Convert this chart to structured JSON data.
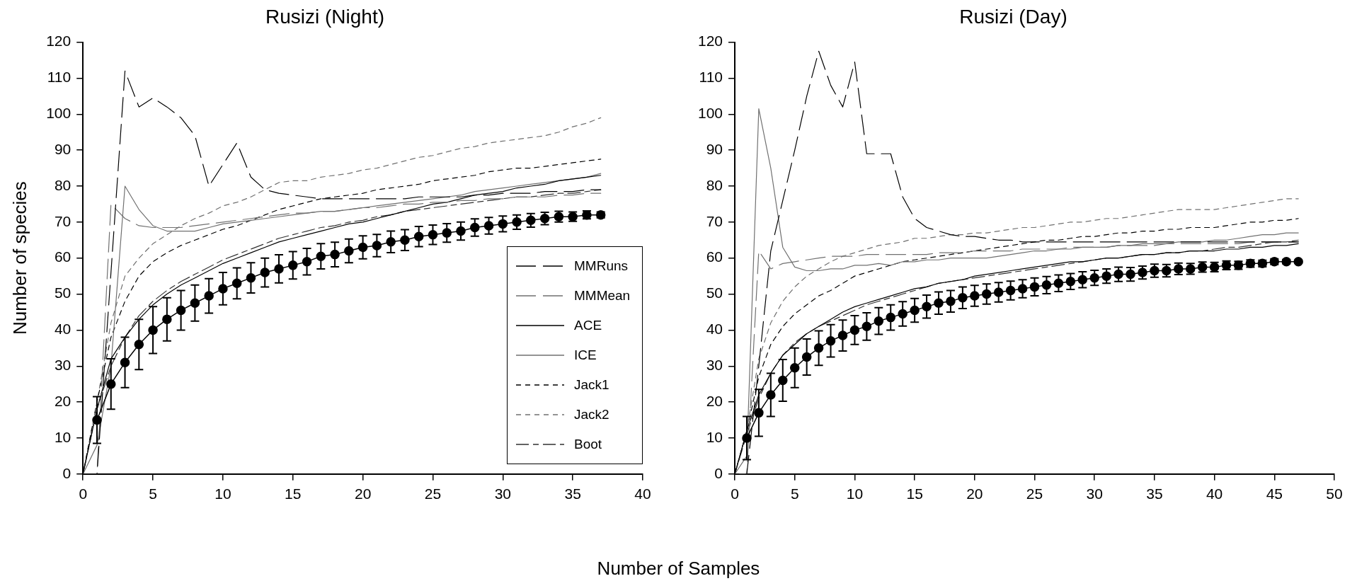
{
  "chart_data": [
    {
      "type": "line",
      "title": "Rusizi (Night)",
      "xlabel": "Number of Samples",
      "ylabel": "Number of species",
      "xlim": [
        0,
        40
      ],
      "xticks": [
        0,
        5,
        10,
        15,
        20,
        25,
        30,
        35,
        40
      ],
      "ylim": [
        0,
        120
      ],
      "yticks": [
        0,
        10,
        20,
        30,
        40,
        50,
        60,
        70,
        80,
        90,
        100,
        110,
        120
      ],
      "grid": false,
      "legend": "bottom right",
      "marker": "none",
      "x": [
        0,
        1,
        2,
        3,
        4,
        5,
        6,
        7,
        8,
        9,
        10,
        11,
        12,
        13,
        14,
        15,
        16,
        17,
        18,
        19,
        20,
        21,
        22,
        23,
        24,
        25,
        26,
        27,
        28,
        29,
        30,
        31,
        32,
        33,
        34,
        35,
        36,
        37
      ],
      "series": [
        {
          "name": "MMRuns",
          "color": "#000000",
          "line_style": "dashed",
          "values": [
            0,
            0,
            56,
            112,
            102,
            104.5,
            102,
            99,
            94,
            80,
            86,
            92,
            82.5,
            79,
            78,
            77.5,
            77,
            76.5,
            76.5,
            76.5,
            76.5,
            76.5,
            76.5,
            76.5,
            77,
            77,
            77,
            77,
            77.5,
            77.5,
            78,
            78,
            78,
            78.5,
            78.5,
            78.5,
            79,
            79
          ]
        },
        {
          "name": "MMMean",
          "color": "#707070",
          "line_style": "dashed",
          "values": [
            0,
            0,
            75,
            71,
            69,
            68.5,
            68.5,
            68.5,
            69,
            69.5,
            70,
            70.5,
            71,
            71.5,
            72,
            72.5,
            72.5,
            73,
            73,
            73.5,
            74,
            74,
            74.5,
            75,
            75,
            75.5,
            75.5,
            76,
            76,
            76.5,
            76.5,
            77,
            77,
            77,
            77.5,
            77.5,
            78,
            78
          ]
        },
        {
          "name": "ACE",
          "color": "#000000",
          "line_style": "solid",
          "values": [
            0,
            18,
            32,
            38,
            43,
            47,
            50,
            52.5,
            54.5,
            56.5,
            58.5,
            60,
            61.5,
            63,
            64.5,
            65.5,
            66.5,
            67.5,
            68.5,
            69.5,
            70,
            71,
            72,
            73,
            74,
            75,
            75.5,
            76.5,
            77.5,
            78,
            78.5,
            79.5,
            80,
            80.5,
            81.5,
            82,
            82.5,
            83
          ]
        },
        {
          "name": "ICE",
          "color": "#707070",
          "line_style": "solid",
          "values": [
            0,
            8,
            30,
            80,
            73.5,
            69,
            67.5,
            67.5,
            67.5,
            68.5,
            69.5,
            70,
            70.5,
            71,
            71.5,
            72,
            72.5,
            73,
            73,
            73.5,
            74,
            74.5,
            75,
            75.5,
            76,
            76.5,
            77,
            77.5,
            78.5,
            79,
            79.5,
            80,
            80.5,
            81,
            81.5,
            82,
            82.5,
            83.5
          ]
        },
        {
          "name": "Jack1",
          "color": "#000000",
          "line_style": "dashed",
          "values": [
            0,
            20,
            38,
            48,
            55,
            59,
            61.5,
            63.5,
            65,
            66.5,
            68,
            69,
            70.5,
            72,
            73.5,
            74.5,
            75.5,
            76.5,
            77,
            77.5,
            78,
            79,
            79.5,
            80,
            80.5,
            81.5,
            82,
            82.5,
            83,
            84,
            84.5,
            85,
            85,
            85.5,
            86,
            86.5,
            87,
            87.5
          ]
        },
        {
          "name": "Jack2",
          "color": "#707070",
          "line_style": "dashed",
          "values": [
            0,
            20,
            42,
            55,
            60,
            64,
            66.5,
            69,
            71,
            72.5,
            74.5,
            75.5,
            77,
            79,
            81,
            81.5,
            81.5,
            82.5,
            83,
            83.5,
            84.5,
            85,
            86,
            87,
            88,
            88.5,
            89.5,
            90.5,
            91,
            92,
            92.5,
            93,
            93.5,
            94,
            95,
            96.5,
            97.5,
            99
          ]
        },
        {
          "name": "Boot",
          "color": "#303030",
          "line_style": "dashed",
          "values": [
            0,
            18,
            30,
            38,
            44,
            48,
            51,
            53.5,
            55.5,
            57.5,
            59.5,
            61,
            62.5,
            64,
            65.5,
            66.5,
            67.5,
            68.5,
            69,
            70,
            70.5,
            71.5,
            72,
            73,
            73.5,
            74,
            74.5,
            75,
            75.5,
            76,
            76.5,
            77,
            77,
            77.5,
            78,
            78,
            78.5,
            79
          ]
        },
        {
          "color": "#000000",
          "line_style": "solid",
          "marker": "circle",
          "x": [
            1,
            2,
            3,
            4,
            5,
            6,
            7,
            8,
            9,
            10,
            11,
            12,
            13,
            14,
            15,
            16,
            17,
            18,
            19,
            20,
            21,
            22,
            23,
            24,
            25,
            26,
            27,
            28,
            29,
            30,
            31,
            32,
            33,
            34,
            35,
            36,
            37
          ],
          "values": [
            15,
            25,
            31,
            36,
            40,
            43,
            45.5,
            47.5,
            49.5,
            51.5,
            53,
            54.5,
            56,
            57,
            58,
            59,
            60.5,
            61,
            62,
            63,
            63.5,
            64.5,
            65,
            66,
            66.5,
            67,
            67.5,
            68.5,
            69,
            69.5,
            70,
            70.5,
            71,
            71.5,
            71.5,
            72,
            72
          ],
          "errors": [
            6.5,
            7,
            7,
            7,
            6.5,
            6,
            5.5,
            5,
            4.8,
            4.5,
            4.3,
            4.2,
            4,
            3.9,
            3.8,
            3.7,
            3.5,
            3.4,
            3.3,
            3.2,
            3.1,
            3,
            2.9,
            2.8,
            2.7,
            2.6,
            2.5,
            2.4,
            2.3,
            2.2,
            2,
            1.9,
            1.7,
            1.5,
            1.3,
            1.1,
            0.8
          ]
        }
      ]
    },
    {
      "type": "line",
      "title": "Rusizi (Day)",
      "xlim": [
        0,
        50
      ],
      "xticks": [
        0,
        5,
        10,
        15,
        20,
        25,
        30,
        35,
        40,
        45,
        50
      ],
      "ylim": [
        0,
        120
      ],
      "yticks": [
        0,
        10,
        20,
        30,
        40,
        50,
        60,
        70,
        80,
        90,
        100,
        110,
        120
      ],
      "grid": false,
      "marker": "none",
      "x": [
        0,
        1,
        2,
        3,
        4,
        5,
        6,
        7,
        8,
        9,
        10,
        11,
        12,
        13,
        14,
        15,
        16,
        17,
        18,
        19,
        20,
        21,
        22,
        23,
        24,
        25,
        26,
        27,
        28,
        29,
        30,
        31,
        32,
        33,
        34,
        35,
        36,
        37,
        38,
        39,
        40,
        41,
        42,
        43,
        44,
        45,
        46,
        47
      ],
      "series": [
        {
          "color": "#000000",
          "line_style": "dashed",
          "values": [
            0,
            0,
            30,
            62,
            76,
            90,
            105,
            117.5,
            108,
            102,
            114.5,
            89,
            89,
            89,
            77,
            71,
            68.5,
            67.5,
            66.5,
            66,
            66,
            65.5,
            65,
            65,
            64.5,
            64.5,
            64.5,
            64.5,
            64.5,
            64.5,
            64.5,
            64.5,
            64.5,
            64.5,
            64.5,
            64.5,
            64.5,
            64.5,
            64.5,
            64.5,
            64.5,
            64.5,
            64.5,
            64.5,
            64.5,
            64.5,
            64.5,
            64.5
          ]
        },
        {
          "color": "#707070",
          "line_style": "dashed",
          "values": [
            0,
            0,
            62,
            57,
            58.5,
            59,
            59.5,
            60,
            60.5,
            60.5,
            60.5,
            61,
            61,
            61,
            61,
            61,
            61,
            61.5,
            61.5,
            61.5,
            62,
            62,
            62,
            62,
            62.5,
            62.5,
            62.5,
            62.5,
            63,
            63,
            63,
            63,
            63.5,
            63.5,
            63.5,
            63.5,
            64,
            64,
            64,
            64,
            64,
            64,
            64,
            64.5,
            64.5,
            64.5,
            64.5,
            64.5
          ]
        },
        {
          "color": "#000000",
          "line_style": "solid",
          "values": [
            0,
            12,
            22,
            28,
            33,
            36,
            39,
            41,
            43,
            45,
            46.5,
            47.5,
            48.5,
            49.5,
            50.5,
            51.5,
            52,
            53,
            53.5,
            54,
            55,
            55.5,
            56,
            56.5,
            57,
            57.5,
            58,
            58.5,
            59,
            59,
            59.5,
            60,
            60,
            60.5,
            61,
            61,
            61.5,
            61.5,
            62,
            62,
            62,
            62.5,
            62.5,
            63,
            63,
            63.5,
            63.5,
            64
          ]
        },
        {
          "color": "#707070",
          "line_style": "solid",
          "values": [
            0,
            5,
            101.5,
            85,
            63,
            57.5,
            56.5,
            56.5,
            57,
            57,
            58,
            58,
            58.5,
            58,
            59,
            59,
            59.5,
            59.5,
            60,
            60,
            60,
            60,
            60.5,
            61,
            61.5,
            62,
            62,
            62.5,
            62.5,
            63,
            63,
            63,
            63.5,
            63.5,
            64,
            64,
            64,
            64.5,
            64.5,
            64.5,
            65,
            65,
            65.5,
            66,
            66.5,
            66.5,
            67,
            67
          ]
        },
        {
          "color": "#000000",
          "line_style": "dashed",
          "values": [
            0,
            12,
            27,
            36,
            41,
            44.5,
            47,
            49.5,
            51,
            53,
            55,
            56,
            57,
            58,
            59,
            59.5,
            60,
            60.5,
            61,
            61.5,
            62,
            62.5,
            63,
            63.5,
            64,
            64.5,
            65,
            65,
            65.5,
            66,
            66,
            66.5,
            67,
            67,
            67.5,
            67.5,
            68,
            68,
            68.5,
            68.5,
            68.5,
            69,
            69.5,
            70,
            70,
            70.5,
            70.5,
            71
          ]
        },
        {
          "color": "#707070",
          "line_style": "dashed",
          "values": [
            0,
            12,
            32,
            42,
            48,
            52,
            55,
            57,
            59,
            60.5,
            61.5,
            62.5,
            63.5,
            64,
            64.5,
            65.5,
            65.5,
            66,
            66.5,
            66.5,
            67,
            67,
            67.5,
            68,
            68.5,
            68.5,
            69,
            69.5,
            70,
            70,
            70.5,
            71,
            71,
            71.5,
            72,
            72.5,
            73,
            73.5,
            73.5,
            73.5,
            73.5,
            74,
            74.5,
            75,
            75.5,
            76,
            76.5,
            76.5
          ]
        },
        {
          "color": "#303030",
          "line_style": "dashed",
          "values": [
            0,
            11,
            21,
            28,
            33,
            36.5,
            39,
            41,
            42.5,
            44,
            45.5,
            47,
            48,
            49,
            50,
            51,
            52,
            53,
            53.5,
            54,
            54.5,
            55,
            55.5,
            56,
            56.5,
            57,
            57.5,
            58,
            58.5,
            59,
            59.5,
            60,
            60,
            60.5,
            61,
            61,
            61.5,
            61.5,
            62,
            62,
            62.5,
            63,
            63,
            63.5,
            64,
            64.5,
            64.5,
            65
          ]
        },
        {
          "color": "#000000",
          "line_style": "solid",
          "marker": "circle",
          "x": [
            1,
            2,
            3,
            4,
            5,
            6,
            7,
            8,
            9,
            10,
            11,
            12,
            13,
            14,
            15,
            16,
            17,
            18,
            19,
            20,
            21,
            22,
            23,
            24,
            25,
            26,
            27,
            28,
            29,
            30,
            31,
            32,
            33,
            34,
            35,
            36,
            37,
            38,
            39,
            40,
            41,
            42,
            43,
            44,
            45,
            46,
            47
          ],
          "values": [
            10,
            17,
            22,
            26,
            29.5,
            32.5,
            35,
            37,
            38.5,
            40,
            41,
            42.5,
            43.5,
            44.5,
            45.5,
            46.5,
            47.5,
            48,
            49,
            49.5,
            50,
            50.5,
            51,
            51.5,
            52,
            52.5,
            53,
            53.5,
            54,
            54.5,
            55,
            55.5,
            55.5,
            56,
            56.5,
            56.5,
            57,
            57,
            57.5,
            57.5,
            58,
            58,
            58.5,
            58.5,
            59,
            59,
            59
          ],
          "errors": [
            6,
            6.5,
            6,
            5.8,
            5.5,
            5,
            4.8,
            4.5,
            4.3,
            4,
            3.8,
            3.7,
            3.5,
            3.4,
            3.3,
            3.2,
            3.1,
            3,
            3,
            2.9,
            2.8,
            2.7,
            2.6,
            2.5,
            2.5,
            2.4,
            2.3,
            2.2,
            2.2,
            2.1,
            2,
            2,
            1.9,
            1.8,
            1.8,
            1.7,
            1.6,
            1.5,
            1.4,
            1.3,
            1.2,
            1.1,
            1,
            0.9,
            0.8,
            0.6,
            0.4
          ]
        }
      ]
    }
  ]
}
